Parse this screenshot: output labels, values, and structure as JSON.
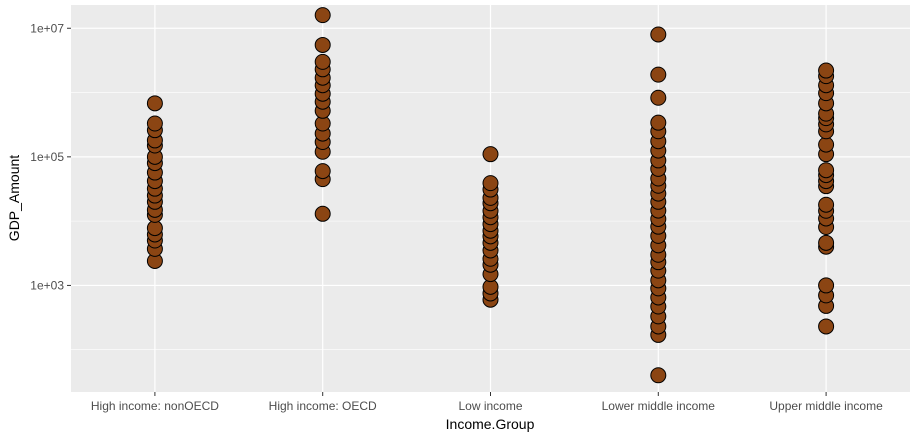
{
  "chart_data": {
    "type": "scatter",
    "title": "",
    "xlabel": "Income.Group",
    "ylabel": "GDP_Amount",
    "y_scale": "log10",
    "ylim": [
      22,
      23000000
    ],
    "y_ticks": [
      1000,
      100000,
      10000000
    ],
    "y_tick_labels": [
      "1e+03",
      "1e+05",
      "1e+07"
    ],
    "grid": true,
    "legend": "none",
    "point_fill": "#8B4513",
    "point_stroke": "#000000",
    "panel_background": "#EBEBEB",
    "gridline_color": "#FFFFFF",
    "categories": [
      "High income: nonOECD",
      "High income: OECD",
      "Low income",
      "Lower middle income",
      "Upper middle income"
    ],
    "series": [
      {
        "values": [
          [
            0,
            2400
          ],
          [
            0,
            3700
          ],
          [
            0,
            5000
          ],
          [
            0,
            6200
          ],
          [
            0,
            7800
          ],
          [
            0,
            12500
          ],
          [
            0,
            15000
          ],
          [
            0,
            20000
          ],
          [
            0,
            25000
          ],
          [
            0,
            32000
          ],
          [
            0,
            42000
          ],
          [
            0,
            57000
          ],
          [
            0,
            80000
          ],
          [
            0,
            100000
          ],
          [
            0,
            150000
          ],
          [
            0,
            180000
          ],
          [
            0,
            260000
          ],
          [
            0,
            330000
          ],
          [
            0,
            680000
          ],
          [
            1,
            13000
          ],
          [
            1,
            45000
          ],
          [
            1,
            60000
          ],
          [
            1,
            120000
          ],
          [
            1,
            170000
          ],
          [
            1,
            230000
          ],
          [
            1,
            330000
          ],
          [
            1,
            520000
          ],
          [
            1,
            720000
          ],
          [
            1,
            960000
          ],
          [
            1,
            1300000
          ],
          [
            1,
            1700000
          ],
          [
            1,
            2300000
          ],
          [
            1,
            3000000
          ],
          [
            1,
            5500000
          ],
          [
            1,
            16000000
          ],
          [
            2,
            600
          ],
          [
            2,
            750
          ],
          [
            2,
            950
          ],
          [
            2,
            1500
          ],
          [
            2,
            2100
          ],
          [
            2,
            2600
          ],
          [
            2,
            3500
          ],
          [
            2,
            4600
          ],
          [
            2,
            5800
          ],
          [
            2,
            7100
          ],
          [
            2,
            9000
          ],
          [
            2,
            11500
          ],
          [
            2,
            14500
          ],
          [
            2,
            19000
          ],
          [
            2,
            23000
          ],
          [
            2,
            31000
          ],
          [
            2,
            39000
          ],
          [
            2,
            110000
          ],
          [
            3,
            40
          ],
          [
            3,
            170
          ],
          [
            3,
            230
          ],
          [
            3,
            330
          ],
          [
            3,
            470
          ],
          [
            3,
            650
          ],
          [
            3,
            900
          ],
          [
            3,
            1200
          ],
          [
            3,
            1700
          ],
          [
            3,
            2300
          ],
          [
            3,
            3000
          ],
          [
            3,
            4200
          ],
          [
            3,
            5900
          ],
          [
            3,
            8200
          ],
          [
            3,
            10800
          ],
          [
            3,
            14600
          ],
          [
            3,
            20000
          ],
          [
            3,
            26800
          ],
          [
            3,
            35500
          ],
          [
            3,
            46000
          ],
          [
            3,
            65000
          ],
          [
            3,
            88000
          ],
          [
            3,
            125000
          ],
          [
            3,
            175000
          ],
          [
            3,
            250000
          ],
          [
            3,
            340000
          ],
          [
            3,
            830000
          ],
          [
            3,
            1900000
          ],
          [
            3,
            8000000
          ],
          [
            4,
            230
          ],
          [
            4,
            480
          ],
          [
            4,
            700
          ],
          [
            4,
            1000
          ],
          [
            4,
            4000
          ],
          [
            4,
            4600
          ],
          [
            4,
            8100
          ],
          [
            4,
            11000
          ],
          [
            4,
            14500
          ],
          [
            4,
            18000
          ],
          [
            4,
            35000
          ],
          [
            4,
            42000
          ],
          [
            4,
            52000
          ],
          [
            4,
            62000
          ],
          [
            4,
            110000
          ],
          [
            4,
            155000
          ],
          [
            4,
            250000
          ],
          [
            4,
            320000
          ],
          [
            4,
            400000
          ],
          [
            4,
            470000
          ],
          [
            4,
            680000
          ],
          [
            4,
            980000
          ],
          [
            4,
            1300000
          ],
          [
            4,
            1800000
          ],
          [
            4,
            2200000
          ]
        ]
      }
    ]
  }
}
